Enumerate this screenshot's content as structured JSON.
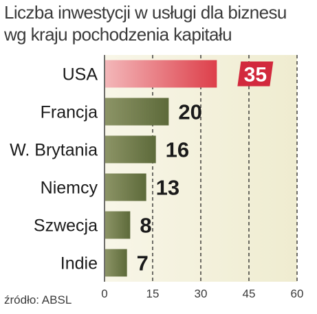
{
  "chart_data": {
    "type": "bar",
    "orientation": "horizontal",
    "title": [
      "Liczba inwestycji w usługi dla biznesu",
      "wg kraju pochodzenia kapitału"
    ],
    "categories": [
      "USA",
      "Francja",
      "W. Brytania",
      "Niemcy",
      "Szwecja",
      "Indie"
    ],
    "values": [
      35,
      20,
      16,
      13,
      8,
      7
    ],
    "data_labels": [
      "35",
      "20",
      "16",
      "13",
      "8",
      "7"
    ],
    "xlim": [
      0,
      60
    ],
    "xticks": [
      "0",
      "15",
      "30",
      "45",
      "60"
    ],
    "grid": "vertical dashed",
    "colors": {
      "highlight_bar": "#e0525a",
      "highlight_label_bg": "#d2293d",
      "bar": "#6b7748",
      "background": "#f3f1dc"
    },
    "source": "źródło: ABSL"
  }
}
